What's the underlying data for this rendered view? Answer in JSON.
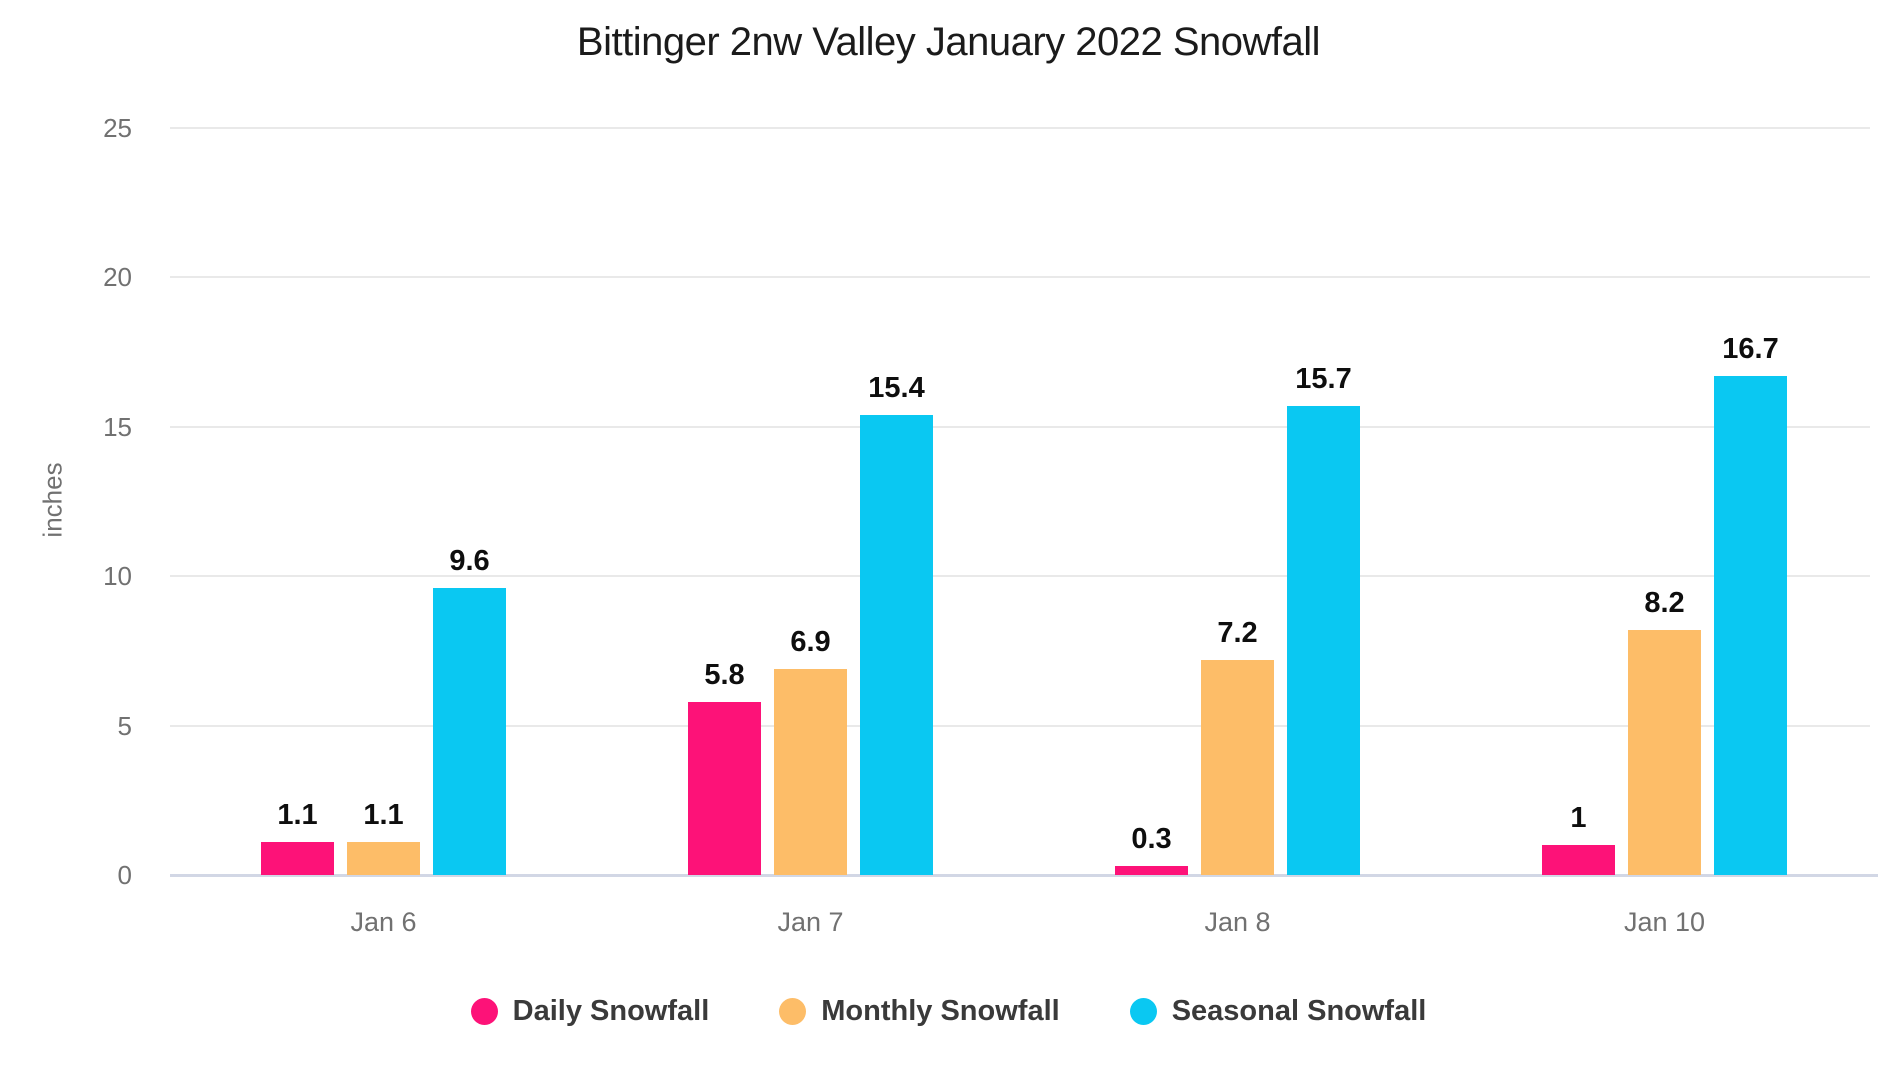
{
  "title": "Bittinger 2nw Valley January 2022 Snowfall",
  "chart_data": {
    "type": "bar",
    "title": "Bittinger 2nw Valley January 2022 Snowfall",
    "categories": [
      "Jan 6",
      "Jan 7",
      "Jan 8",
      "Jan 10"
    ],
    "series": [
      {
        "name": "Daily Snowfall",
        "color": "#FD1278",
        "values": [
          1.1,
          5.8,
          0.3,
          1
        ]
      },
      {
        "name": "Monthly Snowfall",
        "color": "#FDBD68",
        "values": [
          1.1,
          6.9,
          7.2,
          8.2
        ]
      },
      {
        "name": "Seasonal Snowfall",
        "color": "#0AC8F2",
        "values": [
          9.6,
          15.4,
          15.7,
          16.7
        ]
      }
    ],
    "xlabel": "",
    "ylabel": "inches",
    "ylim": [
      0,
      25
    ],
    "yticks": [
      0,
      5,
      10,
      15,
      20,
      25
    ],
    "grid": true,
    "bar_value_labels": true,
    "legend_position": "bottom"
  },
  "legend": {
    "items": [
      {
        "label": "Daily Snowfall",
        "color": "#FD1278"
      },
      {
        "label": "Monthly Snowfall",
        "color": "#FDBD68"
      },
      {
        "label": "Seasonal Snowfall",
        "color": "#0AC8F2"
      }
    ]
  },
  "colors": {
    "background": "#FFFFFF",
    "title_text": "#1B1B1B",
    "axis_text": "#717171",
    "value_label_text": "#0E0E0E",
    "legend_text": "#3A3A3A",
    "gridline": "#E9E9E9",
    "baseline": "#D2D7E5"
  }
}
